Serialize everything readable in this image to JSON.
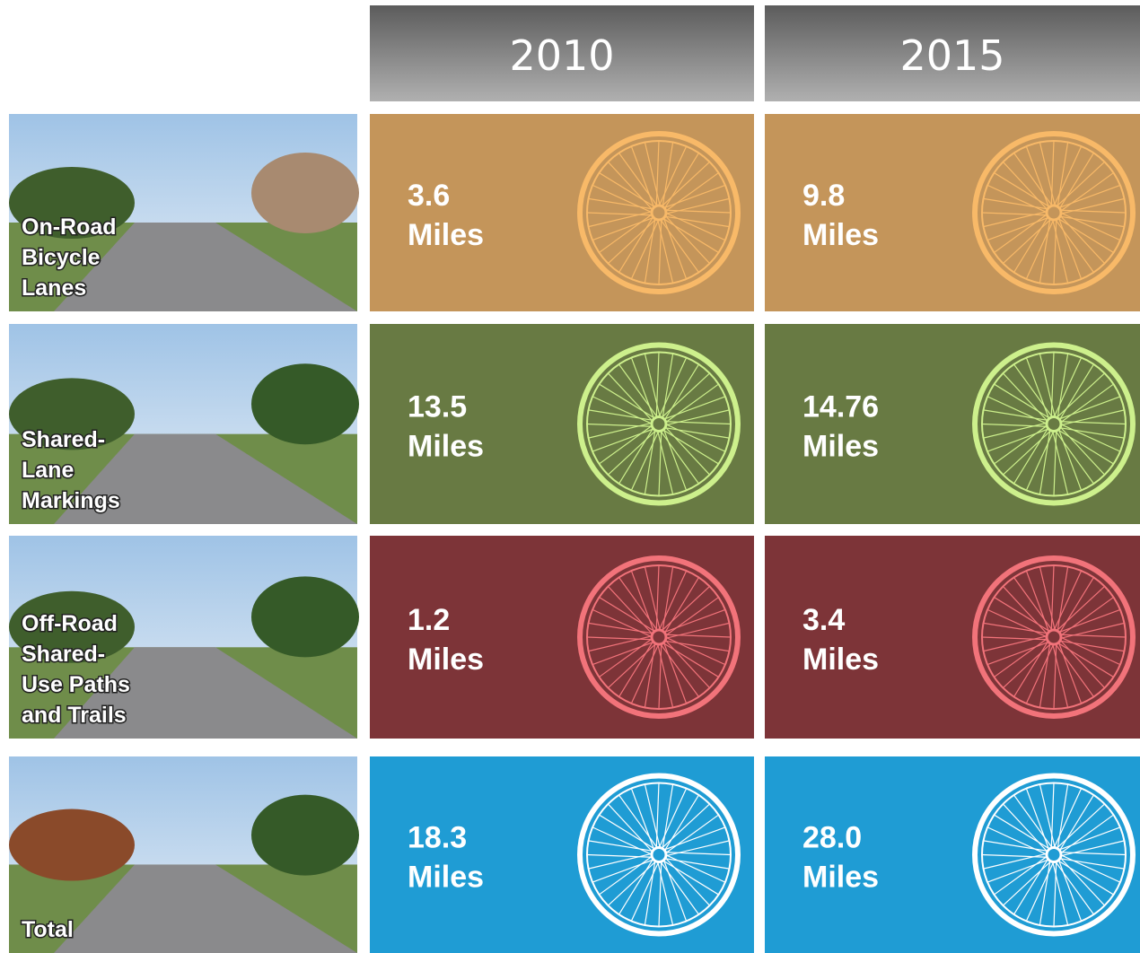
{
  "header": {
    "columns": [
      "2010",
      "2015"
    ]
  },
  "rows": [
    {
      "label_lines": [
        "On-Road",
        "Bicycle",
        "Lanes"
      ],
      "cells": [
        {
          "value": "3.6",
          "unit": "Miles"
        },
        {
          "value": "9.8",
          "unit": "Miles"
        }
      ]
    },
    {
      "label_lines": [
        "Shared-",
        "Lane",
        "Markings"
      ],
      "cells": [
        {
          "value": "13.5",
          "unit": "Miles"
        },
        {
          "value": "14.76",
          "unit": "Miles"
        }
      ]
    },
    {
      "label_lines": [
        "Off-Road",
        "Shared-",
        "Use Paths",
        "and Trails"
      ],
      "cells": [
        {
          "value": "1.2",
          "unit": "Miles"
        },
        {
          "value": "3.4",
          "unit": "Miles"
        }
      ]
    },
    {
      "label_lines": [
        "Total"
      ],
      "cells": [
        {
          "value": "18.3",
          "unit": "Miles"
        },
        {
          "value": "28.0",
          "unit": "Miles"
        }
      ]
    }
  ]
}
